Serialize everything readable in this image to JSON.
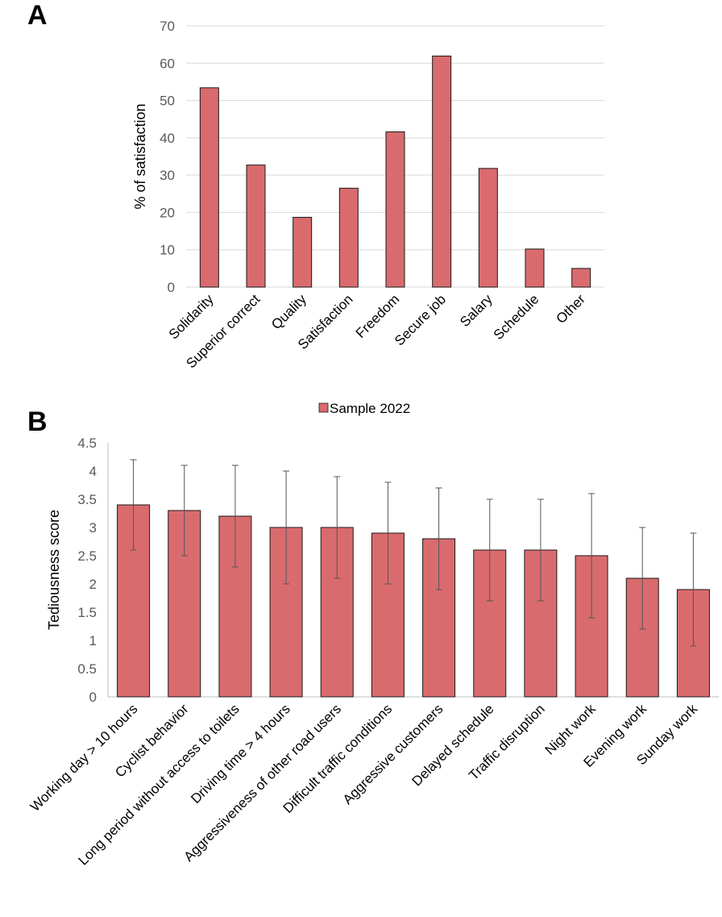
{
  "colors": {
    "bar_fill": "#d96b6e",
    "bar_stroke": "#1a1a1a",
    "grid": "#d9d9d9",
    "error_bar": "#555555"
  },
  "chart_data": [
    {
      "panel": "A",
      "type": "bar",
      "categories": [
        "Solidarity",
        "Superior correct",
        "Quality",
        "Satisfaction",
        "Freedom",
        "Secure job",
        "Salary",
        "Schedule",
        "Other"
      ],
      "series": [
        {
          "name": "Sample 2022",
          "values": [
            53.4,
            32.7,
            18.7,
            26.5,
            41.6,
            61.9,
            31.8,
            10.2,
            5.0
          ]
        }
      ],
      "ylabel": "% of  satisfaction",
      "ylim": [
        0,
        70
      ],
      "yticks": [
        "0",
        "10",
        "20",
        "30",
        "40",
        "50",
        "60",
        "70"
      ],
      "grid": true,
      "legend": {
        "position": "bottom",
        "entries": [
          "Sample 2022"
        ]
      }
    },
    {
      "panel": "B",
      "type": "bar",
      "categories": [
        "Working day > 10 hours",
        "Cyclist behavior",
        "Long period without access to toilets",
        "Driving time > 4 hours",
        "Aggressiveness of other road users",
        "Difficult traffic conditions",
        "Aggressive customers",
        "Delayed schedule",
        "Traffic disruption",
        "Night work",
        "Evening work",
        "Sunday work"
      ],
      "series": [
        {
          "name": "Tediousness score",
          "values": [
            3.4,
            3.3,
            3.2,
            3.0,
            3.0,
            2.9,
            2.8,
            2.6,
            2.6,
            2.5,
            2.1,
            1.9
          ],
          "error": [
            0.8,
            0.8,
            0.9,
            1.0,
            0.9,
            0.9,
            0.9,
            0.9,
            0.9,
            1.1,
            0.9,
            1.0
          ]
        }
      ],
      "ylabel": "Tediousness score",
      "ylim": [
        0,
        4.5
      ],
      "yticks": [
        "0",
        "0.5",
        "1",
        "1.5",
        "2",
        "2.5",
        "3",
        "3.5",
        "4",
        "4.5"
      ],
      "grid": false
    }
  ]
}
